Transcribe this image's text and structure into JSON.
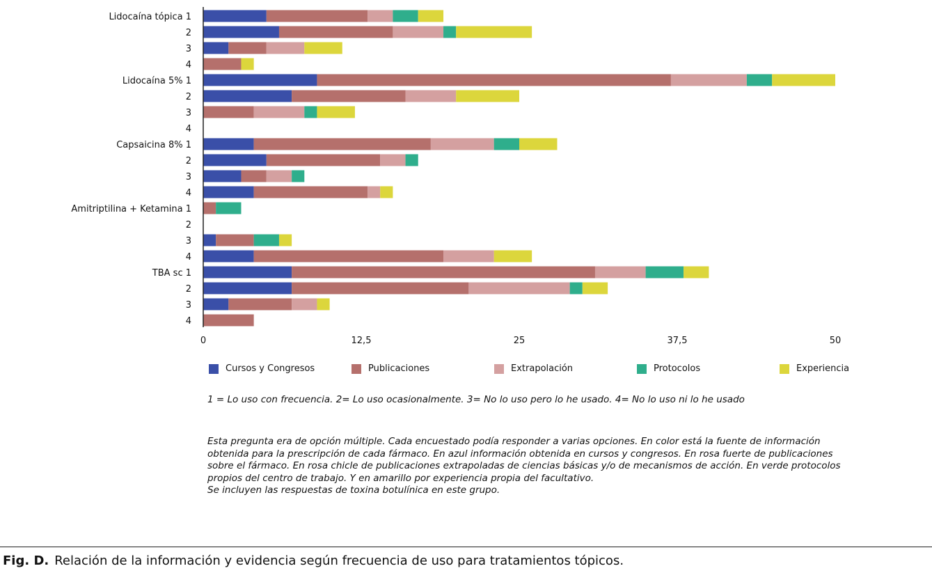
{
  "chart_data": {
    "type": "bar",
    "orientation": "horizontal",
    "stacked": true,
    "categories": [
      "Lidocaína tópica 1",
      "2",
      "3",
      "4",
      "Lidocaína 5% 1",
      "2",
      "3",
      "4",
      "Capsaicina 8% 1",
      "2",
      "3",
      "4",
      "Amitriptilina + Ketamina 1",
      "2",
      "3",
      "4",
      "TBA sc 1",
      "2",
      "3",
      "4"
    ],
    "series": [
      {
        "name": "Cursos y Congresos",
        "color": "#3a4fa8",
        "values": [
          5,
          6,
          2,
          0,
          9,
          7,
          0,
          0,
          4,
          5,
          3,
          4,
          0,
          0,
          1,
          4,
          7,
          7,
          2,
          0
        ]
      },
      {
        "name": "Publicaciones",
        "color": "#b5706c",
        "values": [
          8,
          9,
          3,
          3,
          28,
          9,
          4,
          0,
          14,
          9,
          2,
          9,
          1,
          0,
          3,
          15,
          24,
          14,
          5,
          4
        ]
      },
      {
        "name": "Extrapolación",
        "color": "#d4a0a0",
        "values": [
          2,
          4,
          3,
          0,
          6,
          4,
          4,
          0,
          5,
          2,
          2,
          1,
          0,
          0,
          0,
          4,
          4,
          8,
          2,
          0
        ]
      },
      {
        "name": "Protocolos",
        "color": "#2fae8c",
        "values": [
          2,
          1,
          0,
          0,
          2,
          0,
          1,
          0,
          2,
          1,
          1,
          0,
          2,
          0,
          2,
          0,
          3,
          1,
          0,
          0
        ]
      },
      {
        "name": "Experiencia",
        "color": "#dcd63c",
        "values": [
          2,
          6,
          3,
          1,
          5,
          5,
          3,
          0,
          3,
          0,
          0,
          1,
          0,
          0,
          1,
          3,
          2,
          2,
          1,
          0
        ]
      }
    ],
    "xlim": [
      0,
      50
    ],
    "xticks": [
      "0",
      "12,5",
      "25",
      "37,5",
      "50"
    ],
    "xtick_values": [
      0,
      12.5,
      25,
      37.5,
      50
    ],
    "grid": false,
    "legend_position": "bottom"
  },
  "notes": {
    "scale": "1 = Lo uso con frecuencia. 2= Lo uso ocasionalmente. 3= No lo uso pero lo he usado. 4= No lo uso ni lo he usado",
    "description": "Esta pregunta era de opción múltiple. Cada encuestado podía responder a varias opciones. En color está la fuente de información obtenida para la prescripción de cada fármaco. En azul información obtenida en cursos y congresos. En rosa fuerte de publicaciones sobre el fármaco. En rosa chicle de publicaciones extrapoladas de ciencias básicas y/o de mecanismos de acción. En verde protocolos propios del centro de trabajo. Y en amarillo por experiencia propia del facultativo.",
    "extra": "Se incluyen las respuestas de toxina botulínica en este grupo."
  },
  "caption": {
    "label": "Fig. D.",
    "text": "Relación de la información y evidencia según frecuencia de uso para tratamientos tópicos."
  }
}
